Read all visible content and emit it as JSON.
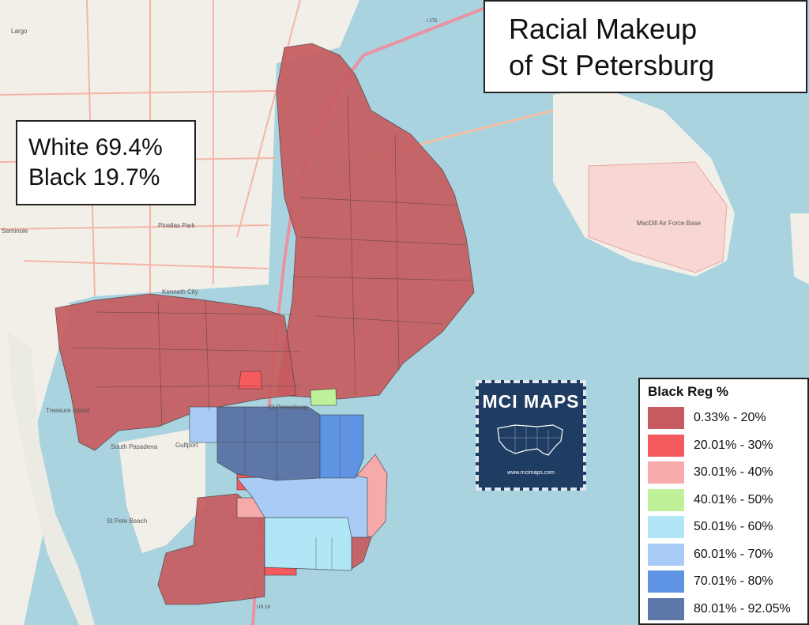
{
  "title": {
    "line1": "Racial Makeup",
    "line2": "of St Petersburg"
  },
  "stats": [
    {
      "label": "White",
      "value": "69.4%"
    },
    {
      "label": "Black",
      "value": "19.7%"
    }
  ],
  "logo": {
    "brand": "MCI MAPS",
    "url": "www.mcimaps.com"
  },
  "legend": {
    "title": "Black Reg %",
    "items": [
      {
        "label": "0.33% - 20%",
        "color": "#c75b5f"
      },
      {
        "label": "20.01% - 30%",
        "color": "#f55a5e"
      },
      {
        "label": "30.01% - 40%",
        "color": "#f7aaaa"
      },
      {
        "label": "40.01% - 50%",
        "color": "#bff19a"
      },
      {
        "label": "50.01% - 60%",
        "color": "#b1e6f7"
      },
      {
        "label": "60.01% - 70%",
        "color": "#a9ccf6"
      },
      {
        "label": "70.01% - 80%",
        "color": "#5f93e4"
      },
      {
        "label": "80.01% - 92.05%",
        "color": "#5d78a8"
      }
    ]
  },
  "map_labels": {
    "largo": "Largo",
    "pinellas_park": "Pinellas Park",
    "kenneth_city": "Kenneth City",
    "st_petersburg": "St Petersburg",
    "gulfport": "Gulfport",
    "south_pasadena": "South Pasadena",
    "treasure_island": "Treasure Island",
    "st_pete_beach": "St Pete Beach",
    "macdill": "MacDill Air Force Base",
    "seminole": "Seminole",
    "i275": "I 275",
    "us19": "US 19"
  },
  "colors": {
    "water": "#a9d3df",
    "land": "#f2efe9"
  }
}
